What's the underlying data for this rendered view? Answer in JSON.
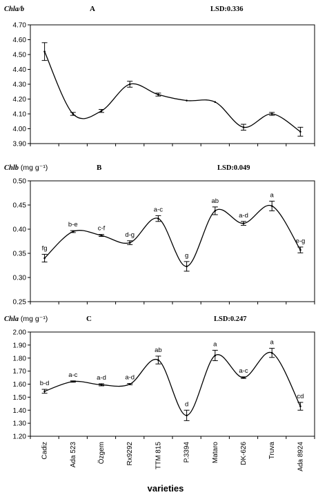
{
  "chart_data": [
    {
      "type": "line",
      "panel_label": "A",
      "ylabel": "Chla/b",
      "ylabel_unit": "",
      "lsd": "LSD:0.336",
      "ylim": [
        4.0,
        4.7
      ],
      "yticks": [
        "4.70",
        "4.60",
        "4.50",
        "4.40",
        "4.30",
        "4.20",
        "4.10",
        "4.00",
        "3.90"
      ],
      "ytick_values": [
        4.7,
        4.6,
        4.5,
        4.4,
        4.3,
        4.2,
        4.1,
        4.0,
        3.9
      ],
      "categories": [
        "Cadiz",
        "Ada 523",
        "Özgem",
        "Rx9292",
        "TTM 815",
        "P.3394",
        "Mataro",
        "DK-626",
        "Truva",
        "Ada 8924"
      ],
      "values": [
        4.52,
        4.1,
        4.12,
        4.3,
        4.23,
        4.19,
        4.18,
        4.01,
        4.1,
        3.98
      ],
      "errors": [
        0.06,
        0.01,
        0.01,
        0.02,
        0.01,
        0.0,
        0.0,
        0.02,
        0.01,
        0.03
      ],
      "letters": [
        "",
        "",
        "",
        "",
        "",
        "",
        "",
        "",
        "",
        ""
      ]
    },
    {
      "type": "line",
      "panel_label": "B",
      "ylabel": "Chlb",
      "ylabel_unit": "(mg g⁻¹)",
      "lsd": "LSD:0.049",
      "ylim": [
        0.25,
        0.5
      ],
      "yticks": [
        "0.50",
        "0.45",
        "0.40",
        "0.35",
        "0.30",
        "0.25"
      ],
      "ytick_values": [
        0.5,
        0.45,
        0.4,
        0.35,
        0.3,
        0.25
      ],
      "categories": [
        "Cadiz",
        "Ada 523",
        "Özgem",
        "Rx9292",
        "TTM 815",
        "P.3394",
        "Mataro",
        "DK-626",
        "Truva",
        "Ada 8924"
      ],
      "values": [
        0.34,
        0.395,
        0.387,
        0.372,
        0.422,
        0.323,
        0.438,
        0.412,
        0.448,
        0.357
      ],
      "errors": [
        0.008,
        0.002,
        0.002,
        0.004,
        0.006,
        0.01,
        0.008,
        0.004,
        0.01,
        0.006
      ],
      "letters": [
        "fg",
        "b-e",
        "c-f",
        "d-g",
        "a-c",
        "g",
        "ab",
        "a-d",
        "a",
        "e-g"
      ]
    },
    {
      "type": "line",
      "panel_label": "C",
      "ylabel": "Chla",
      "ylabel_unit": "(mg g⁻¹)",
      "lsd": "LSD:0.247",
      "ylim": [
        1.2,
        2.0
      ],
      "yticks": [
        "2.00",
        "1.90",
        "1.80",
        "1.70",
        "1.60",
        "1.50",
        "1.40",
        "1.30",
        "1.20"
      ],
      "ytick_values": [
        2.0,
        1.9,
        1.8,
        1.7,
        1.6,
        1.5,
        1.4,
        1.3,
        1.2
      ],
      "categories": [
        "Cadiz",
        "Ada 523",
        "Özgem",
        "Rx9292",
        "TTM 815",
        "P.3394",
        "Mataro",
        "DK-626",
        "Truva",
        "Ada 8924"
      ],
      "values": [
        1.545,
        1.62,
        1.595,
        1.6,
        1.785,
        1.36,
        1.82,
        1.65,
        1.84,
        1.43
      ],
      "errors": [
        0.015,
        0.005,
        0.008,
        0.005,
        0.03,
        0.04,
        0.04,
        0.006,
        0.035,
        0.03
      ],
      "letters": [
        "b-d",
        "a-c",
        "a-d",
        "a-d",
        "ab",
        "d",
        "a",
        "a-c",
        "a",
        "cd"
      ],
      "xlabel": "varieties"
    }
  ]
}
